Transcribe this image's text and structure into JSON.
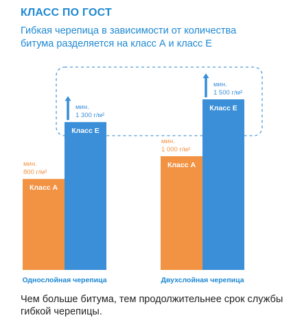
{
  "header": {
    "title": "КЛАСС ПО ГОСТ",
    "subtitle_line1": "Гибкая черепица в зависимости от количества",
    "subtitle_line2": "битума разделяется на класс А и класс Е"
  },
  "footer": {
    "line1": "Чем больше битума, тем продолжительнее срок службы",
    "line2": "гибкой черепицы."
  },
  "colors": {
    "class_a": "#f29344",
    "class_e": "#3a8fd8",
    "label": "#1e88d2",
    "dashed_box": "#4e9ad8"
  },
  "chart_data": {
    "type": "bar",
    "title": "",
    "xlabel": "",
    "ylabel": "",
    "unit": "г/м²",
    "ylim": [
      0,
      1700
    ],
    "grid": false,
    "legend": "none",
    "groups": [
      {
        "category": "Однослойная черепица",
        "bars": [
          {
            "name": "Класс А",
            "value": 800,
            "min_label": "мин.",
            "value_label": "800 г/м²",
            "arrow": false
          },
          {
            "name": "Класс Е",
            "value": 1300,
            "min_label": "мин.",
            "value_label": "1 300 г/м²",
            "arrow": true
          }
        ]
      },
      {
        "category": "Двухслойная черепица",
        "bars": [
          {
            "name": "Класс А",
            "value": 1000,
            "min_label": "мин.",
            "value_label": "1 000 г/м²",
            "arrow": false
          },
          {
            "name": "Класс Е",
            "value": 1500,
            "min_label": "мин.",
            "value_label": "1 500 г/м²",
            "arrow": true
          }
        ]
      }
    ]
  }
}
